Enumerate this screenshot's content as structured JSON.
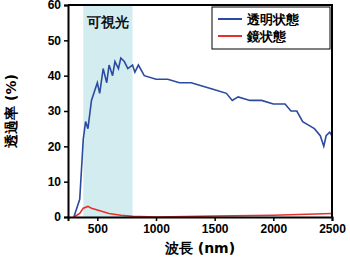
{
  "chart_data": {
    "type": "line",
    "x_label": "波長 (nm)",
    "y_label": "透過率 (%)",
    "xlim": [
      250,
      2500
    ],
    "xticks": [
      500,
      1000,
      1500,
      2000,
      2500
    ],
    "ylim": [
      0,
      60
    ],
    "yticks": [
      0,
      10,
      20,
      30,
      40,
      50,
      60
    ],
    "grid": false,
    "legend": "upper right",
    "annotations": [
      {
        "text": "可視光",
        "x_range": [
          380,
          800
        ]
      }
    ],
    "series": [
      {
        "name": "透明状態",
        "color": "#2b4aa0",
        "line_style": "solid",
        "x": [
          300,
          350,
          380,
          400,
          420,
          450,
          480,
          500,
          520,
          550,
          580,
          600,
          630,
          650,
          680,
          700,
          730,
          760,
          800,
          820,
          850,
          900,
          1000,
          1100,
          1200,
          1300,
          1400,
          1500,
          1600,
          1650,
          1700,
          1800,
          1900,
          2000,
          2100,
          2150,
          2200,
          2250,
          2300,
          2350,
          2400,
          2430,
          2450,
          2480,
          2500
        ],
        "values": [
          0,
          5,
          22,
          27,
          25,
          33,
          36,
          38,
          35,
          42,
          38,
          43,
          40,
          44,
          42,
          45,
          44,
          42,
          43,
          41,
          43,
          40,
          39,
          39,
          38,
          38,
          37,
          36,
          35,
          33,
          34,
          33,
          33,
          32,
          32,
          30,
          30,
          27,
          26,
          25,
          23,
          20,
          23,
          24,
          23
        ]
      },
      {
        "name": "鏡状態",
        "color": "#e8302a",
        "line_style": "solid",
        "x": [
          300,
          350,
          380,
          420,
          450,
          500,
          600,
          700,
          800,
          1000,
          1500,
          2000,
          2500
        ],
        "values": [
          0,
          1,
          2.5,
          3,
          2.5,
          2,
          1,
          0.5,
          0.2,
          0,
          0.3,
          0.5,
          1
        ]
      }
    ]
  }
}
